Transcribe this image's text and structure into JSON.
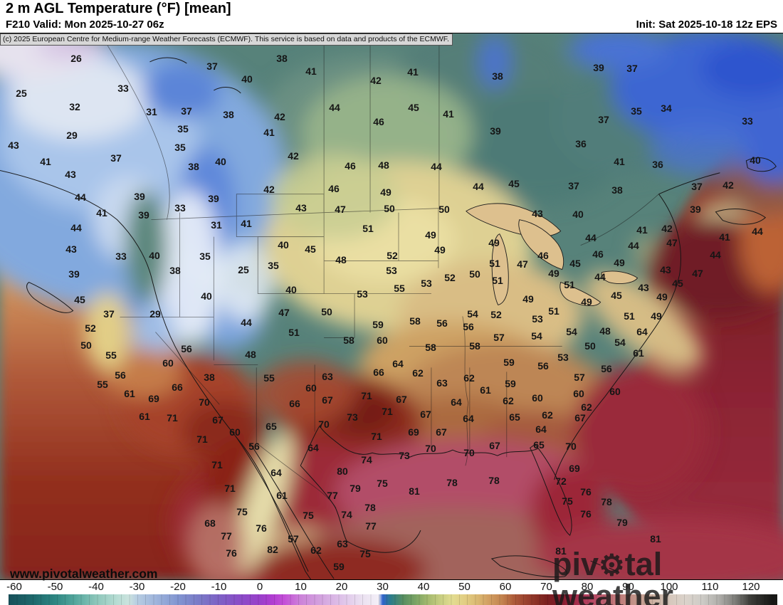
{
  "header": {
    "title": "2 m AGL Temperature (°F) [mean]",
    "subtitle_left": "F210 Valid: Mon 2025-10-27 06z",
    "subtitle_right": "Init: Sat 2025-10-18 12z EPS",
    "copyright": "(c) 2025 European Centre for Medium-range Weather Forecasts (ECMWF). This service is based on data and products of the ECMWF."
  },
  "watermarks": {
    "url": "www.pivotalweather.com",
    "brand_left": "piv",
    "brand_gear": "⚙",
    "brand_right": "tal weather"
  },
  "colorbar": {
    "ticks": [
      -60,
      -50,
      -40,
      -30,
      -20,
      -10,
      0,
      10,
      20,
      30,
      40,
      50,
      60,
      70,
      80,
      90,
      100,
      110,
      120
    ],
    "stops": [
      [
        -62,
        "#17505a"
      ],
      [
        -55,
        "#1e6a6d"
      ],
      [
        -50,
        "#2d8682"
      ],
      [
        -45,
        "#55a89e"
      ],
      [
        -40,
        "#8cc6ba"
      ],
      [
        -35,
        "#b6dcd3"
      ],
      [
        -32,
        "#cbe3de"
      ],
      [
        -30,
        "#b7cde2"
      ],
      [
        -25,
        "#9cb2db"
      ],
      [
        -20,
        "#8295d1"
      ],
      [
        -15,
        "#7a7bc7"
      ],
      [
        -10,
        "#7d61c5"
      ],
      [
        -5,
        "#8a4dc7"
      ],
      [
        0,
        "#9940ca"
      ],
      [
        3,
        "#b03dd1"
      ],
      [
        6,
        "#c44fd8"
      ],
      [
        10,
        "#cc83d9"
      ],
      [
        15,
        "#d3a3df"
      ],
      [
        20,
        "#dec2e9"
      ],
      [
        25,
        "#ebe1f1"
      ],
      [
        29,
        "#f3eff7"
      ],
      [
        30,
        "#2f62cc"
      ],
      [
        32,
        "#2c7d8a"
      ],
      [
        35,
        "#578e61"
      ],
      [
        38,
        "#79a364"
      ],
      [
        41,
        "#a3b96e"
      ],
      [
        44,
        "#c6cd80"
      ],
      [
        47,
        "#e2dc91"
      ],
      [
        50,
        "#e2ce83"
      ],
      [
        53,
        "#dbba73"
      ],
      [
        56,
        "#d19e61"
      ],
      [
        59,
        "#c48550"
      ],
      [
        62,
        "#ae5c3a"
      ],
      [
        65,
        "#9b422f"
      ],
      [
        68,
        "#882e25"
      ],
      [
        70,
        "#7b211f"
      ],
      [
        72,
        "#7d1d27"
      ],
      [
        75,
        "#922037"
      ],
      [
        78,
        "#a82f4f"
      ],
      [
        80,
        "#b33e5d"
      ],
      [
        83,
        "#bd566c"
      ],
      [
        86,
        "#c27378"
      ],
      [
        90,
        "#bf8980"
      ],
      [
        95,
        "#caab9b"
      ],
      [
        100,
        "#d6c7bb"
      ],
      [
        104,
        "#dbd3cb"
      ],
      [
        108,
        "#ceccc7"
      ],
      [
        112,
        "#b1b0ac"
      ],
      [
        116,
        "#7f7f7b"
      ],
      [
        120,
        "#3b3b37"
      ],
      [
        125,
        "#181816"
      ]
    ]
  },
  "map": {
    "temperature_labels": [
      [
        26,
        107,
        82
      ],
      [
        25,
        30,
        131
      ],
      [
        33,
        173,
        124
      ],
      [
        32,
        105,
        150
      ],
      [
        31,
        213,
        157
      ],
      [
        37,
        262,
        156
      ],
      [
        35,
        257,
        181
      ],
      [
        29,
        101,
        190
      ],
      [
        43,
        19,
        204
      ],
      [
        35,
        253,
        207
      ],
      [
        37,
        163,
        222
      ],
      [
        41,
        64,
        227
      ],
      [
        43,
        99,
        245
      ],
      [
        37,
        298,
        93
      ],
      [
        38,
        396,
        82
      ],
      [
        41,
        437,
        100
      ],
      [
        40,
        347,
        111
      ],
      [
        42,
        528,
        113
      ],
      [
        38,
        321,
        161
      ],
      [
        44,
        470,
        151
      ],
      [
        42,
        393,
        164
      ],
      [
        46,
        532,
        171
      ],
      [
        41,
        378,
        186
      ],
      [
        42,
        412,
        219
      ],
      [
        40,
        310,
        227
      ],
      [
        46,
        492,
        233
      ],
      [
        48,
        539,
        232
      ],
      [
        38,
        272,
        234
      ],
      [
        41,
        580,
        101
      ],
      [
        38,
        699,
        107
      ],
      [
        45,
        581,
        151
      ],
      [
        41,
        630,
        160
      ],
      [
        39,
        696,
        184
      ],
      [
        44,
        613,
        234
      ],
      [
        36,
        816,
        202
      ],
      [
        39,
        841,
        95
      ],
      [
        37,
        888,
        96
      ],
      [
        35,
        894,
        156
      ],
      [
        34,
        936,
        152
      ],
      [
        37,
        848,
        168
      ],
      [
        33,
        1050,
        170
      ],
      [
        36,
        924,
        231
      ],
      [
        41,
        870,
        227
      ],
      [
        40,
        1061,
        225
      ],
      [
        44,
        113,
        277
      ],
      [
        39,
        196,
        276
      ],
      [
        41,
        143,
        299
      ],
      [
        39,
        202,
        302
      ],
      [
        33,
        253,
        292
      ],
      [
        44,
        107,
        320
      ],
      [
        43,
        100,
        350
      ],
      [
        33,
        170,
        360
      ],
      [
        40,
        217,
        359
      ],
      [
        38,
        246,
        380
      ],
      [
        39,
        104,
        385
      ],
      [
        45,
        112,
        421
      ],
      [
        42,
        378,
        266
      ],
      [
        46,
        469,
        265
      ],
      [
        49,
        542,
        270
      ],
      [
        39,
        300,
        279
      ],
      [
        43,
        423,
        292
      ],
      [
        47,
        478,
        294
      ],
      [
        50,
        547,
        293
      ],
      [
        31,
        304,
        316
      ],
      [
        41,
        346,
        314
      ],
      [
        51,
        517,
        321
      ],
      [
        40,
        398,
        344
      ],
      [
        45,
        436,
        350
      ],
      [
        35,
        288,
        360
      ],
      [
        48,
        479,
        365
      ],
      [
        52,
        551,
        359
      ],
      [
        25,
        342,
        379
      ],
      [
        35,
        384,
        373
      ],
      [
        40,
        409,
        407
      ],
      [
        40,
        290,
        416
      ],
      [
        53,
        509,
        413
      ],
      [
        53,
        550,
        380
      ],
      [
        47,
        399,
        439
      ],
      [
        50,
        459,
        438
      ],
      [
        44,
        672,
        262
      ],
      [
        45,
        722,
        258
      ],
      [
        37,
        806,
        261
      ],
      [
        50,
        624,
        294
      ],
      [
        43,
        755,
        300
      ],
      [
        40,
        812,
        301
      ],
      [
        49,
        605,
        330
      ],
      [
        49,
        694,
        341
      ],
      [
        49,
        618,
        351
      ],
      [
        46,
        763,
        359
      ],
      [
        51,
        695,
        370
      ],
      [
        47,
        734,
        371
      ],
      [
        45,
        808,
        370
      ],
      [
        50,
        667,
        385
      ],
      [
        49,
        778,
        384
      ],
      [
        51,
        699,
        394
      ],
      [
        51,
        800,
        400
      ],
      [
        52,
        632,
        390
      ],
      [
        53,
        599,
        398
      ],
      [
        55,
        561,
        405
      ],
      [
        49,
        742,
        420
      ],
      [
        51,
        778,
        437
      ],
      [
        54,
        664,
        441
      ],
      [
        52,
        697,
        442
      ],
      [
        49,
        824,
        424
      ],
      [
        38,
        867,
        267
      ],
      [
        37,
        979,
        262
      ],
      [
        42,
        1023,
        260
      ],
      [
        39,
        977,
        294
      ],
      [
        41,
        902,
        323
      ],
      [
        42,
        937,
        321
      ],
      [
        44,
        1064,
        325
      ],
      [
        41,
        1018,
        333
      ],
      [
        47,
        944,
        341
      ],
      [
        44,
        890,
        345
      ],
      [
        44,
        830,
        334
      ],
      [
        46,
        840,
        357
      ],
      [
        49,
        870,
        369
      ],
      [
        44,
        1005,
        358
      ],
      [
        43,
        935,
        379
      ],
      [
        47,
        980,
        384
      ],
      [
        44,
        843,
        389
      ],
      [
        45,
        952,
        398
      ],
      [
        43,
        904,
        404
      ],
      [
        45,
        866,
        415
      ],
      [
        49,
        930,
        417
      ],
      [
        51,
        884,
        444
      ],
      [
        49,
        922,
        444
      ],
      [
        37,
        153,
        441
      ],
      [
        29,
        218,
        441
      ],
      [
        52,
        127,
        461
      ],
      [
        50,
        121,
        485
      ],
      [
        55,
        156,
        499
      ],
      [
        56,
        262,
        490
      ],
      [
        60,
        236,
        510
      ],
      [
        56,
        169,
        527
      ],
      [
        66,
        249,
        544
      ],
      [
        55,
        144,
        540
      ],
      [
        61,
        182,
        553
      ],
      [
        69,
        216,
        560
      ],
      [
        61,
        203,
        585
      ],
      [
        71,
        242,
        587
      ],
      [
        44,
        346,
        453
      ],
      [
        51,
        413,
        467
      ],
      [
        59,
        531,
        456
      ],
      [
        58,
        490,
        478
      ],
      [
        60,
        537,
        478
      ],
      [
        48,
        352,
        498
      ],
      [
        38,
        294,
        530
      ],
      [
        55,
        378,
        531
      ],
      [
        63,
        460,
        529
      ],
      [
        66,
        532,
        523
      ],
      [
        60,
        437,
        545
      ],
      [
        70,
        287,
        565
      ],
      [
        67,
        460,
        562
      ],
      [
        71,
        515,
        556
      ],
      [
        66,
        414,
        567
      ],
      [
        73,
        495,
        586
      ],
      [
        67,
        306,
        590
      ],
      [
        70,
        455,
        596
      ],
      [
        65,
        381,
        599
      ],
      [
        60,
        330,
        607
      ],
      [
        71,
        529,
        613
      ],
      [
        71,
        284,
        617
      ],
      [
        71,
        544,
        578
      ],
      [
        56,
        357,
        627
      ],
      [
        64,
        440,
        629
      ],
      [
        58,
        583,
        451
      ],
      [
        56,
        621,
        454
      ],
      [
        56,
        658,
        459
      ],
      [
        53,
        755,
        448
      ],
      [
        54,
        803,
        466
      ],
      [
        54,
        754,
        472
      ],
      [
        57,
        701,
        474
      ],
      [
        58,
        605,
        488
      ],
      [
        58,
        667,
        486
      ],
      [
        53,
        791,
        502
      ],
      [
        64,
        559,
        511
      ],
      [
        59,
        715,
        509
      ],
      [
        56,
        763,
        514
      ],
      [
        62,
        587,
        524
      ],
      [
        62,
        659,
        531
      ],
      [
        57,
        814,
        530
      ],
      [
        63,
        621,
        538
      ],
      [
        59,
        717,
        539
      ],
      [
        61,
        682,
        548
      ],
      [
        60,
        755,
        559
      ],
      [
        60,
        813,
        553
      ],
      [
        67,
        564,
        561
      ],
      [
        62,
        714,
        563
      ],
      [
        64,
        641,
        565
      ],
      [
        62,
        769,
        583
      ],
      [
        67,
        598,
        582
      ],
      [
        65,
        723,
        586
      ],
      [
        64,
        658,
        588
      ],
      [
        69,
        581,
        607
      ],
      [
        64,
        760,
        603
      ],
      [
        67,
        620,
        607
      ],
      [
        65,
        757,
        625
      ],
      [
        70,
        802,
        627
      ],
      [
        70,
        605,
        630
      ],
      [
        67,
        695,
        626
      ],
      [
        67,
        815,
        587
      ],
      [
        62,
        824,
        572
      ],
      [
        48,
        850,
        465
      ],
      [
        64,
        902,
        466
      ],
      [
        50,
        829,
        486
      ],
      [
        54,
        871,
        481
      ],
      [
        61,
        897,
        496
      ],
      [
        56,
        852,
        518
      ],
      [
        60,
        864,
        550
      ],
      [
        71,
        305,
        653
      ],
      [
        74,
        515,
        646
      ],
      [
        80,
        481,
        662
      ],
      [
        64,
        388,
        664
      ],
      [
        71,
        323,
        686
      ],
      [
        79,
        499,
        686
      ],
      [
        61,
        396,
        696
      ],
      [
        77,
        467,
        696
      ],
      [
        75,
        537,
        679
      ],
      [
        78,
        520,
        713
      ],
      [
        75,
        340,
        719
      ],
      [
        75,
        433,
        724
      ],
      [
        74,
        487,
        723
      ],
      [
        77,
        521,
        739
      ],
      [
        68,
        295,
        735
      ],
      [
        76,
        367,
        742
      ],
      [
        77,
        318,
        753
      ],
      [
        57,
        412,
        757
      ],
      [
        63,
        481,
        764
      ],
      [
        76,
        325,
        777
      ],
      [
        82,
        383,
        772
      ],
      [
        62,
        444,
        773
      ],
      [
        75,
        513,
        778
      ],
      [
        59,
        476,
        796
      ],
      [
        73,
        568,
        640
      ],
      [
        70,
        659,
        636
      ],
      [
        69,
        807,
        658
      ],
      [
        81,
        582,
        690
      ],
      [
        78,
        635,
        678
      ],
      [
        78,
        694,
        675
      ],
      [
        72,
        788,
        676
      ],
      [
        75,
        797,
        704
      ],
      [
        81,
        788,
        774
      ],
      [
        76,
        823,
        691
      ],
      [
        76,
        823,
        722
      ],
      [
        78,
        852,
        705
      ],
      [
        79,
        874,
        734
      ],
      [
        81,
        921,
        757
      ]
    ]
  }
}
